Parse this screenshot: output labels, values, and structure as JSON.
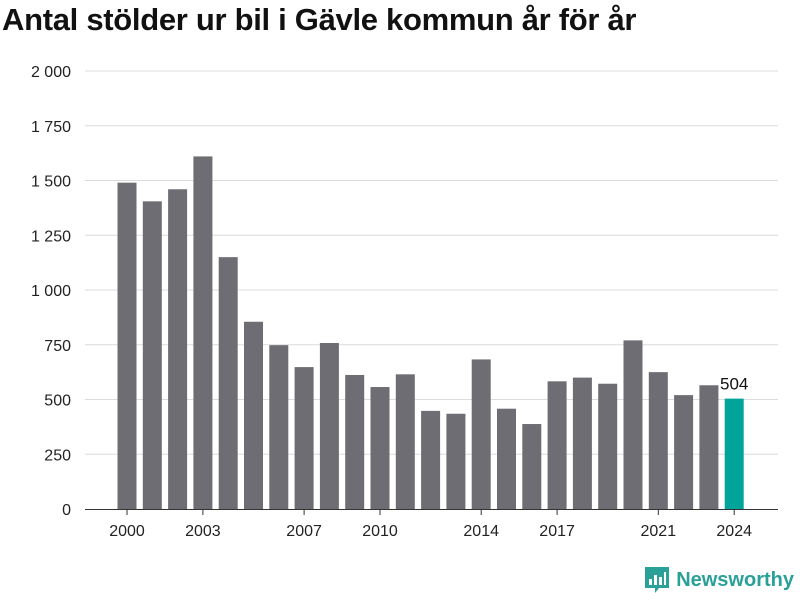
{
  "chart_data": {
    "type": "bar",
    "title": "Antal stölder ur bil i Gävle kommun år för år",
    "categories": [
      "2000",
      "2001",
      "2002",
      "2003",
      "2004",
      "2005",
      "2006",
      "2007",
      "2008",
      "2009",
      "2010",
      "2011",
      "2012",
      "2013",
      "2014",
      "2015",
      "2016",
      "2017",
      "2018",
      "2019",
      "2020",
      "2021",
      "2022",
      "2023",
      "2024"
    ],
    "x_tick_labels": [
      "2000",
      "2003",
      "2007",
      "2010",
      "2014",
      "2017",
      "2021",
      "2024"
    ],
    "values": [
      1490,
      1405,
      1460,
      1610,
      1150,
      855,
      748,
      648,
      758,
      612,
      557,
      615,
      448,
      435,
      683,
      458,
      388,
      583,
      600,
      572,
      770,
      625,
      520,
      565,
      504
    ],
    "ylim": [
      0,
      2000
    ],
    "y_tick_values": [
      0,
      250,
      500,
      750,
      1000,
      1250,
      1500,
      1750,
      2000
    ],
    "y_tick_labels": [
      "0",
      "250",
      "500",
      "750",
      "1 000",
      "1 250",
      "1 500",
      "1 750",
      "2 000"
    ],
    "highlight_index": 24,
    "highlight_label": "504",
    "bar_color": "#6e6d73",
    "highlight_color": "#00a49a",
    "grid": true
  },
  "brand": {
    "name": "Newsworthy",
    "color": "#2aa198",
    "icon": "newsworthy-logo-icon"
  }
}
